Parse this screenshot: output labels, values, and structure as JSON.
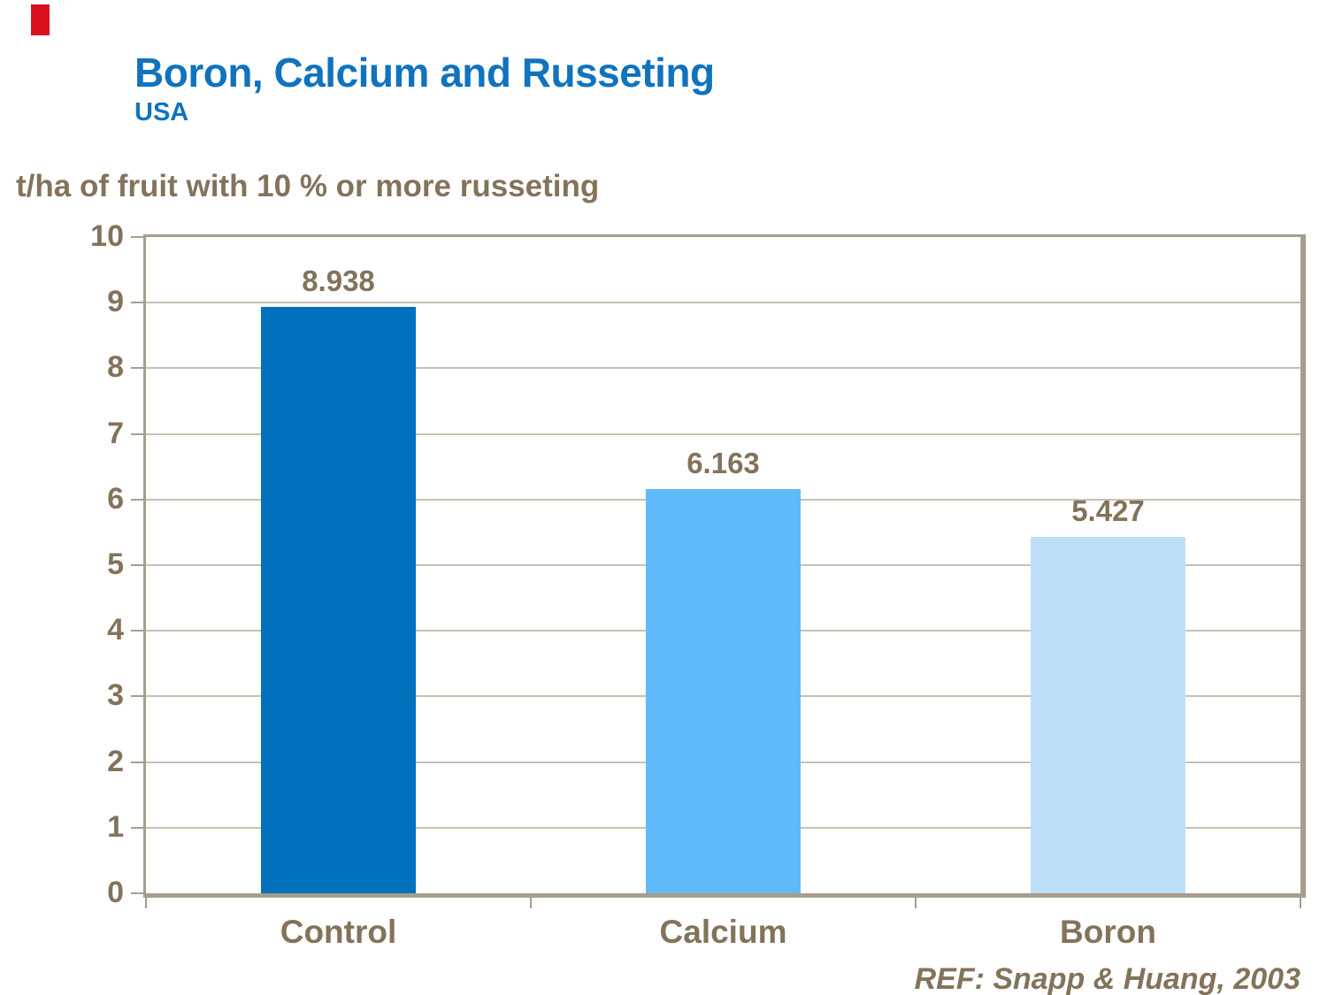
{
  "header": {
    "title": "Boron, Calcium and Russeting",
    "subtitle": "USA"
  },
  "chart_data": {
    "type": "bar",
    "title": "Boron, Calcium and Russeting",
    "subtitle": "USA",
    "ylabel": "t/ha of fruit with 10 % or more russeting",
    "xlabel": "",
    "categories": [
      "Control",
      "Calcium",
      "Boron"
    ],
    "values": [
      8.938,
      6.163,
      5.427
    ],
    "value_labels": [
      "8.938",
      "6.163",
      "5.427"
    ],
    "ylim": [
      0,
      10
    ],
    "yticks": [
      0,
      1,
      2,
      3,
      4,
      5,
      6,
      7,
      8,
      9,
      10
    ],
    "grid": true,
    "legend": false,
    "bar_colors": [
      "#0071BC",
      "#5FBBF7",
      "#BEDFF8"
    ]
  },
  "footer": {
    "reference": "REF: Snapp & Huang, 2003"
  },
  "colors": {
    "accent_red": "#DA1220",
    "title_blue": "#1173BD",
    "text_brown": "#83735B",
    "grid_line": "#C8C0B3",
    "axis_frame": "#A79D8F"
  }
}
